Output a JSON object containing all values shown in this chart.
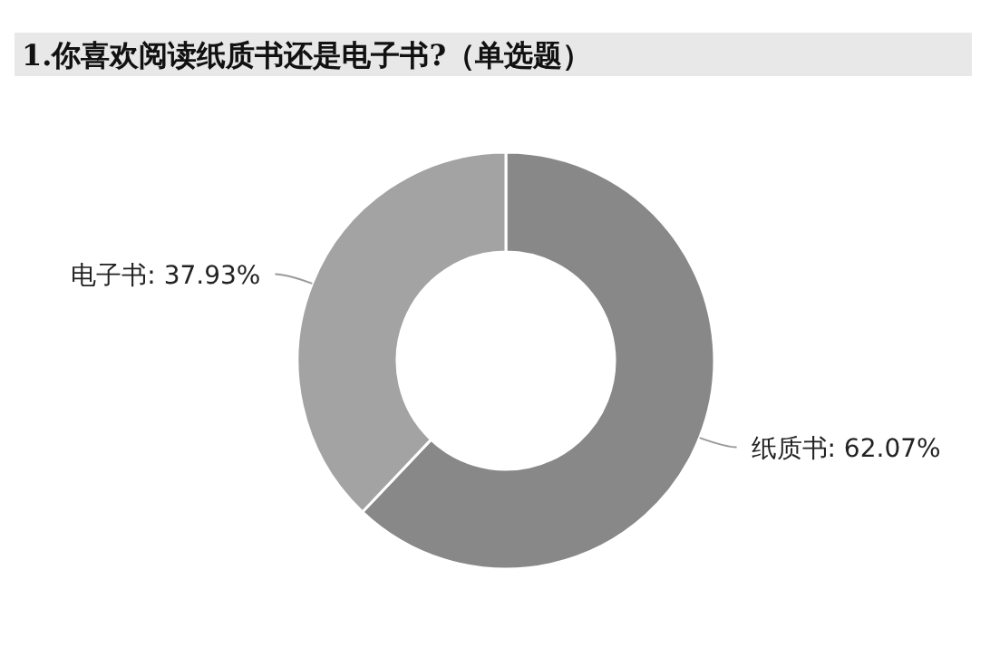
{
  "chart_data": {
    "type": "donut",
    "title": "1.你喜欢阅读纸质书还是电子书?（单选题）",
    "categories": [
      "纸质书",
      "电子书"
    ],
    "values": [
      62.07,
      37.93
    ],
    "value_labels": [
      "62.07%",
      "37.93%"
    ],
    "colors": [
      "#888888",
      "#a3a3a3"
    ]
  }
}
